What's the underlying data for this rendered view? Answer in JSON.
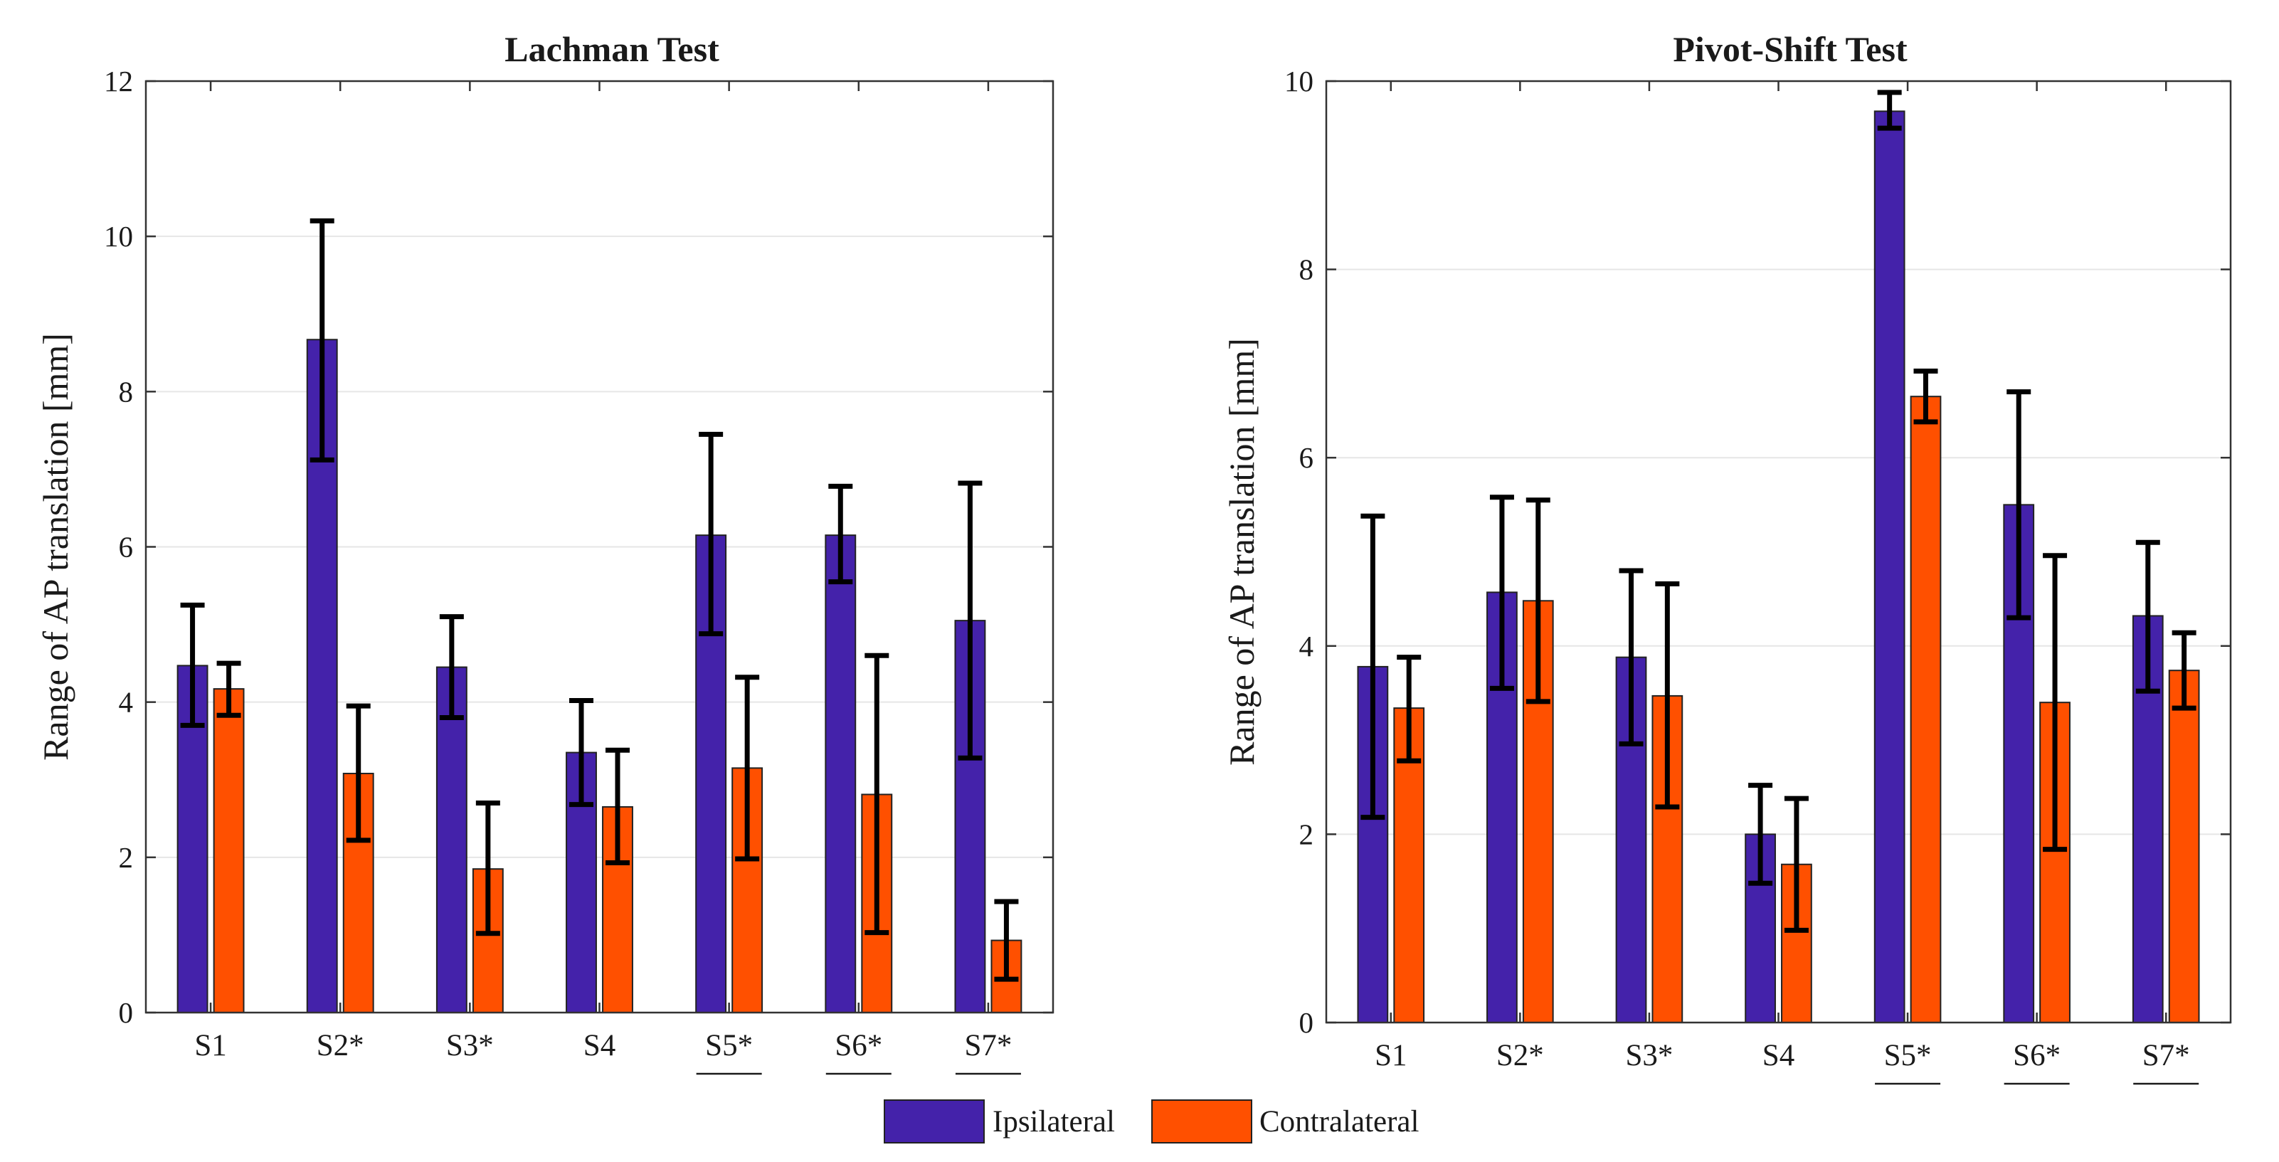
{
  "colors": {
    "ipsilateral": "#4422AA",
    "contralateral": "#FF5000",
    "axis": "#333333",
    "grid": "#e6e6e6",
    "error": "#000000"
  },
  "legend": {
    "entries": [
      "Ipsilateral",
      "Contralateral"
    ]
  },
  "chart_data": [
    {
      "type": "bar",
      "title": "Lachman Test",
      "xlabel": "",
      "ylabel": "Range of AP translation [mm]",
      "ylim": [
        0,
        12
      ],
      "yticks": [
        0,
        2,
        4,
        6,
        8,
        10,
        12
      ],
      "grid": true,
      "categories": [
        "S1",
        "S2*",
        "S3*",
        "S4",
        "S5*",
        "S6*",
        "S7*"
      ],
      "underlined_categories": [
        "S5*",
        "S6*",
        "S7*"
      ],
      "series": [
        {
          "name": "Ipsilateral",
          "values": [
            4.47,
            8.67,
            4.45,
            3.35,
            6.15,
            6.15,
            5.05
          ],
          "error_low": [
            3.7,
            7.12,
            3.8,
            2.68,
            4.88,
            5.55,
            3.28
          ],
          "error_high": [
            5.25,
            10.2,
            5.1,
            4.02,
            7.45,
            6.78,
            6.82
          ]
        },
        {
          "name": "Contralateral",
          "values": [
            4.17,
            3.08,
            1.85,
            2.65,
            3.15,
            2.81,
            0.93
          ],
          "error_low": [
            3.83,
            2.22,
            1.02,
            1.93,
            1.98,
            1.03,
            0.43
          ],
          "error_high": [
            4.5,
            3.95,
            2.7,
            3.38,
            4.32,
            4.6,
            1.43
          ]
        }
      ]
    },
    {
      "type": "bar",
      "title": "Pivot-Shift Test",
      "xlabel": "",
      "ylabel": "Range of AP translation [mm]",
      "ylim": [
        0,
        10
      ],
      "yticks": [
        0,
        2,
        4,
        6,
        8,
        10
      ],
      "grid": true,
      "categories": [
        "S1",
        "S2*",
        "S3*",
        "S4",
        "S5*",
        "S6*",
        "S7*"
      ],
      "underlined_categories": [
        "S5*",
        "S6*",
        "S7*"
      ],
      "series": [
        {
          "name": "Ipsilateral",
          "values": [
            3.78,
            4.57,
            3.88,
            2.0,
            9.68,
            5.5,
            4.32
          ],
          "error_low": [
            2.18,
            3.55,
            2.96,
            1.48,
            9.5,
            4.3,
            3.52
          ],
          "error_high": [
            5.38,
            5.58,
            4.8,
            2.52,
            9.88,
            6.7,
            5.1
          ]
        },
        {
          "name": "Contralateral",
          "values": [
            3.34,
            4.48,
            3.47,
            1.68,
            6.65,
            3.4,
            3.74
          ],
          "error_low": [
            2.78,
            3.41,
            2.29,
            0.98,
            6.38,
            1.84,
            3.34
          ],
          "error_high": [
            3.88,
            5.55,
            4.66,
            2.38,
            6.92,
            4.96,
            4.14
          ]
        }
      ]
    }
  ]
}
